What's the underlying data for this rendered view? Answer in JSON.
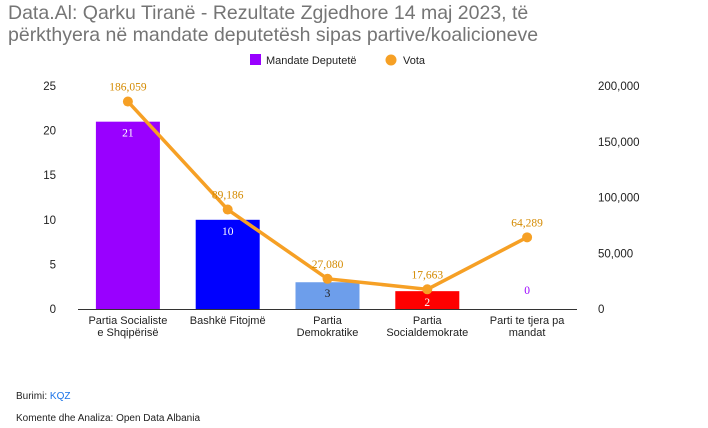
{
  "title_line1": "Data.Al: Qarku Tiranë - Rezultate Zgjedhore 14 maj 2023, të",
  "title_line2": "përkthyera në mandate deputetësh sipas partive/koalicioneve",
  "footer": {
    "source_label": "Burimi:",
    "source_link": "KQZ",
    "comments": "Komente dhe Analiza: Open Data Albania"
  },
  "chart_data": {
    "type": "bar+line",
    "categories": [
      [
        "Partia Socialiste",
        "e Shqipërisë"
      ],
      [
        "Bashkë Fitojmë"
      ],
      [
        "Partia",
        "Demokratike"
      ],
      [
        "Partia",
        "Socialdemokrate"
      ],
      [
        "Parti te tjera pa",
        "mandat"
      ]
    ],
    "legend_position": "top-center",
    "series": [
      {
        "name": "Mandate Deputetë",
        "kind": "bar",
        "axis": "left",
        "values": [
          21,
          10,
          3,
          2,
          0
        ],
        "labels": [
          "21",
          "10",
          "3",
          "2",
          "0"
        ],
        "colors": [
          "#9900ff",
          "#0000ff",
          "#6d9eeb",
          "#ff0000",
          "#9900ff"
        ],
        "legend_color": "#9900ff"
      },
      {
        "name": "Vota",
        "kind": "line",
        "axis": "right",
        "values": [
          186059,
          89186,
          27080,
          17663,
          64289
        ],
        "labels": [
          "186,059",
          "89,186",
          "27,080",
          "17,663",
          "64,289"
        ],
        "color": "#f6a025",
        "label_color": "#d48a00"
      }
    ],
    "y_left": {
      "min": 0,
      "max": 25,
      "ticks": [
        "0",
        "5",
        "10",
        "15",
        "20",
        "25"
      ]
    },
    "y_right": {
      "min": 0,
      "max": 200000,
      "ticks": [
        "0",
        "50,000",
        "100,000",
        "150,000",
        "200,000"
      ]
    },
    "grid": false
  }
}
